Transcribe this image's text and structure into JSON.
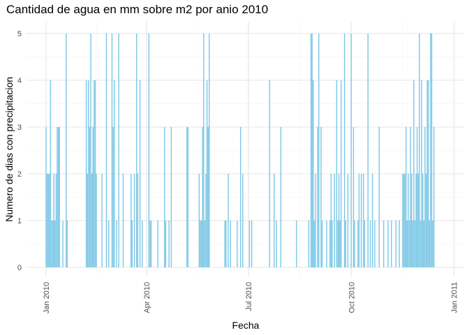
{
  "chart_data": {
    "type": "bar",
    "title": "Cantidad de agua en mm sobre m2 por anio 2010",
    "xlabel": "Fecha",
    "ylabel": "Numero de dias con precipitacion",
    "x_tick_labels": [
      "Jan 2010",
      "Apr 2010",
      "Jul 2010",
      "Oct 2010",
      "Jan 2011"
    ],
    "y_tick_labels": [
      "0",
      "1",
      "2",
      "3",
      "4",
      "5"
    ],
    "ylim": [
      0,
      5
    ],
    "xlim": [
      "2010-01-01",
      "2010-12-31"
    ],
    "grid": true,
    "bar_color": "#7ec8e6",
    "points": [
      {
        "x": "2010-01-01",
        "y": 3
      },
      {
        "x": "2010-01-02",
        "y": 2
      },
      {
        "x": "2010-01-03",
        "y": 2
      },
      {
        "x": "2010-01-04",
        "y": 2
      },
      {
        "x": "2010-01-05",
        "y": 4
      },
      {
        "x": "2010-01-06",
        "y": 1
      },
      {
        "x": "2010-01-07",
        "y": 1
      },
      {
        "x": "2010-01-08",
        "y": 2
      },
      {
        "x": "2010-01-09",
        "y": 1
      },
      {
        "x": "2010-01-10",
        "y": 2
      },
      {
        "x": "2010-01-11",
        "y": 3
      },
      {
        "x": "2010-01-12",
        "y": 3
      },
      {
        "x": "2010-01-13",
        "y": 3
      },
      {
        "x": "2010-01-16",
        "y": 1
      },
      {
        "x": "2010-01-19",
        "y": 5
      },
      {
        "x": "2010-01-20",
        "y": 1
      },
      {
        "x": "2010-02-06",
        "y": 4
      },
      {
        "x": "2010-02-07",
        "y": 2
      },
      {
        "x": "2010-02-08",
        "y": 4
      },
      {
        "x": "2010-02-09",
        "y": 3
      },
      {
        "x": "2010-02-10",
        "y": 5
      },
      {
        "x": "2010-02-11",
        "y": 2
      },
      {
        "x": "2010-02-12",
        "y": 3
      },
      {
        "x": "2010-02-13",
        "y": 4
      },
      {
        "x": "2010-02-14",
        "y": 4
      },
      {
        "x": "2010-02-15",
        "y": 2
      },
      {
        "x": "2010-02-20",
        "y": 2
      },
      {
        "x": "2010-02-24",
        "y": 5
      },
      {
        "x": "2010-02-26",
        "y": 1
      },
      {
        "x": "2010-03-01",
        "y": 5
      },
      {
        "x": "2010-03-02",
        "y": 3
      },
      {
        "x": "2010-03-03",
        "y": 4
      },
      {
        "x": "2010-03-05",
        "y": 1
      },
      {
        "x": "2010-03-07",
        "y": 5
      },
      {
        "x": "2010-03-11",
        "y": 2
      },
      {
        "x": "2010-03-18",
        "y": 2
      },
      {
        "x": "2010-03-19",
        "y": 1
      },
      {
        "x": "2010-03-21",
        "y": 2
      },
      {
        "x": "2010-03-23",
        "y": 5
      },
      {
        "x": "2010-03-24",
        "y": 2
      },
      {
        "x": "2010-03-26",
        "y": 4
      },
      {
        "x": "2010-03-28",
        "y": 1
      },
      {
        "x": "2010-04-03",
        "y": 5
      },
      {
        "x": "2010-04-04",
        "y": 1
      },
      {
        "x": "2010-04-05",
        "y": 1
      },
      {
        "x": "2010-04-11",
        "y": 1
      },
      {
        "x": "2010-04-17",
        "y": 3
      },
      {
        "x": "2010-04-18",
        "y": 1
      },
      {
        "x": "2010-04-21",
        "y": 1
      },
      {
        "x": "2010-04-23",
        "y": 3
      },
      {
        "x": "2010-05-07",
        "y": 3
      },
      {
        "x": "2010-05-08",
        "y": 3
      },
      {
        "x": "2010-05-18",
        "y": 2
      },
      {
        "x": "2010-05-19",
        "y": 1
      },
      {
        "x": "2010-05-20",
        "y": 1
      },
      {
        "x": "2010-05-21",
        "y": 3
      },
      {
        "x": "2010-05-22",
        "y": 5
      },
      {
        "x": "2010-05-23",
        "y": 1
      },
      {
        "x": "2010-05-24",
        "y": 2
      },
      {
        "x": "2010-05-25",
        "y": 4
      },
      {
        "x": "2010-05-26",
        "y": 3
      },
      {
        "x": "2010-05-27",
        "y": 5
      },
      {
        "x": "2010-06-10",
        "y": 1
      },
      {
        "x": "2010-06-11",
        "y": 1
      },
      {
        "x": "2010-06-13",
        "y": 2
      },
      {
        "x": "2010-06-15",
        "y": 1
      },
      {
        "x": "2010-06-21",
        "y": 1
      },
      {
        "x": "2010-06-24",
        "y": 3
      },
      {
        "x": "2010-06-26",
        "y": 2
      },
      {
        "x": "2010-07-02",
        "y": 1
      },
      {
        "x": "2010-07-04",
        "y": 1
      },
      {
        "x": "2010-07-20",
        "y": 4
      },
      {
        "x": "2010-07-24",
        "y": 2
      },
      {
        "x": "2010-07-26",
        "y": 1
      },
      {
        "x": "2010-07-30",
        "y": 3
      },
      {
        "x": "2010-08-13",
        "y": 1
      },
      {
        "x": "2010-08-24",
        "y": 1
      },
      {
        "x": "2010-08-26",
        "y": 5
      },
      {
        "x": "2010-08-27",
        "y": 5
      },
      {
        "x": "2010-08-28",
        "y": 4
      },
      {
        "x": "2010-08-29",
        "y": 1
      },
      {
        "x": "2010-08-30",
        "y": 2
      },
      {
        "x": "2010-09-01",
        "y": 3
      },
      {
        "x": "2010-09-02",
        "y": 5
      },
      {
        "x": "2010-09-04",
        "y": 3
      },
      {
        "x": "2010-09-05",
        "y": 1
      },
      {
        "x": "2010-09-09",
        "y": 1
      },
      {
        "x": "2010-09-12",
        "y": 1
      },
      {
        "x": "2010-09-13",
        "y": 2
      },
      {
        "x": "2010-09-14",
        "y": 1
      },
      {
        "x": "2010-09-16",
        "y": 2
      },
      {
        "x": "2010-09-18",
        "y": 4
      },
      {
        "x": "2010-09-19",
        "y": 1
      },
      {
        "x": "2010-09-20",
        "y": 2
      },
      {
        "x": "2010-09-21",
        "y": 1
      },
      {
        "x": "2010-09-22",
        "y": 4
      },
      {
        "x": "2010-09-25",
        "y": 5
      },
      {
        "x": "2010-09-26",
        "y": 1
      },
      {
        "x": "2010-09-28",
        "y": 2
      },
      {
        "x": "2010-10-01",
        "y": 5
      },
      {
        "x": "2010-10-03",
        "y": 3
      },
      {
        "x": "2010-10-04",
        "y": 1
      },
      {
        "x": "2010-10-07",
        "y": 1
      },
      {
        "x": "2010-10-08",
        "y": 2
      },
      {
        "x": "2010-10-10",
        "y": 2
      },
      {
        "x": "2010-10-12",
        "y": 2
      },
      {
        "x": "2010-10-13",
        "y": 1
      },
      {
        "x": "2010-10-16",
        "y": 5
      },
      {
        "x": "2010-10-18",
        "y": 1
      },
      {
        "x": "2010-10-20",
        "y": 2
      },
      {
        "x": "2010-10-22",
        "y": 1
      },
      {
        "x": "2010-10-26",
        "y": 3
      },
      {
        "x": "2010-10-30",
        "y": 1
      },
      {
        "x": "2010-11-03",
        "y": 1
      },
      {
        "x": "2010-11-06",
        "y": 1
      },
      {
        "x": "2010-11-10",
        "y": 1
      },
      {
        "x": "2010-11-13",
        "y": 1
      },
      {
        "x": "2010-11-16",
        "y": 2
      },
      {
        "x": "2010-11-17",
        "y": 2
      },
      {
        "x": "2010-11-18",
        "y": 2
      },
      {
        "x": "2010-11-19",
        "y": 3
      },
      {
        "x": "2010-11-20",
        "y": 1
      },
      {
        "x": "2010-11-21",
        "y": 2
      },
      {
        "x": "2010-11-22",
        "y": 1
      },
      {
        "x": "2010-11-23",
        "y": 3
      },
      {
        "x": "2010-11-24",
        "y": 2
      },
      {
        "x": "2010-11-25",
        "y": 1
      },
      {
        "x": "2010-11-26",
        "y": 4
      },
      {
        "x": "2010-11-27",
        "y": 1
      },
      {
        "x": "2010-11-28",
        "y": 2
      },
      {
        "x": "2010-11-29",
        "y": 3
      },
      {
        "x": "2010-11-30",
        "y": 2
      },
      {
        "x": "2010-12-01",
        "y": 5
      },
      {
        "x": "2010-12-02",
        "y": 1
      },
      {
        "x": "2010-12-03",
        "y": 4
      },
      {
        "x": "2010-12-04",
        "y": 2
      },
      {
        "x": "2010-12-05",
        "y": 1
      },
      {
        "x": "2010-12-06",
        "y": 3
      },
      {
        "x": "2010-12-07",
        "y": 2
      },
      {
        "x": "2010-12-08",
        "y": 4
      },
      {
        "x": "2010-12-09",
        "y": 4
      },
      {
        "x": "2010-12-10",
        "y": 1
      },
      {
        "x": "2010-12-11",
        "y": 5
      },
      {
        "x": "2010-12-12",
        "y": 5
      },
      {
        "x": "2010-12-13",
        "y": 1
      },
      {
        "x": "2010-12-14",
        "y": 3
      }
    ]
  }
}
